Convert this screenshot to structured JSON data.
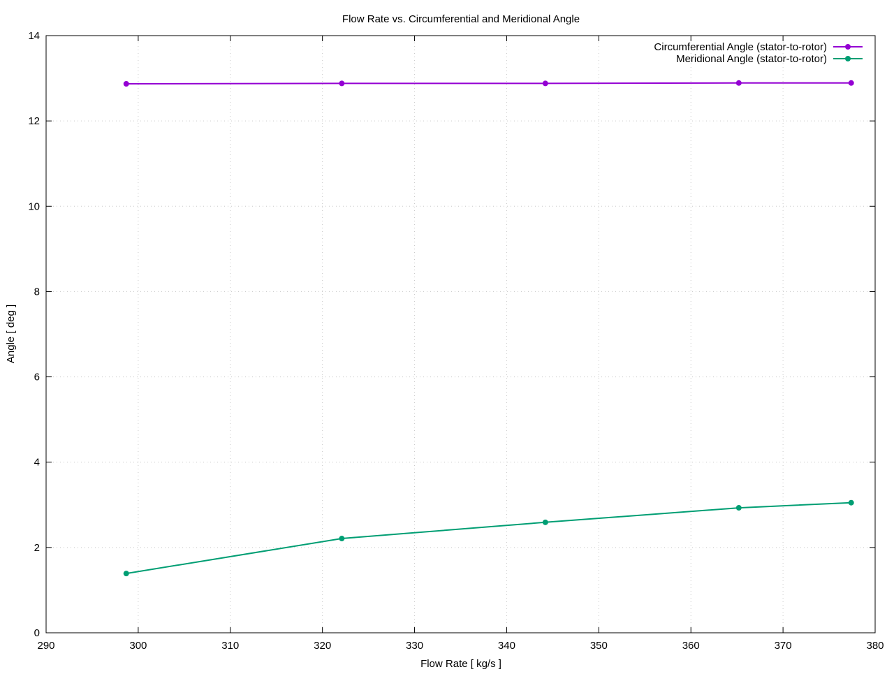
{
  "chart_data": {
    "type": "line",
    "title": "Flow Rate vs. Circumferential and Meridional Angle",
    "xlabel": "Flow Rate [ kg/s ]",
    "ylabel": "Angle [ deg ]",
    "xlim": [
      290,
      380
    ],
    "ylim": [
      0,
      14
    ],
    "xticks": [
      290,
      300,
      310,
      320,
      330,
      340,
      350,
      360,
      370,
      380
    ],
    "yticks": [
      0,
      2,
      4,
      6,
      8,
      10,
      12,
      14
    ],
    "grid": true,
    "legend_position": "top-right",
    "series": [
      {
        "name": "Circumferential Angle (stator-to-rotor)",
        "color": "#9400d3",
        "x": [
          298.7,
          322.1,
          344.2,
          365.2,
          377.4
        ],
        "y": [
          12.87,
          12.88,
          12.88,
          12.89,
          12.89
        ]
      },
      {
        "name": "Meridional Angle (stator-to-rotor)",
        "color": "#009e73",
        "x": [
          298.7,
          322.1,
          344.2,
          365.2,
          377.4
        ],
        "y": [
          1.39,
          2.21,
          2.59,
          2.93,
          3.05
        ]
      }
    ]
  }
}
